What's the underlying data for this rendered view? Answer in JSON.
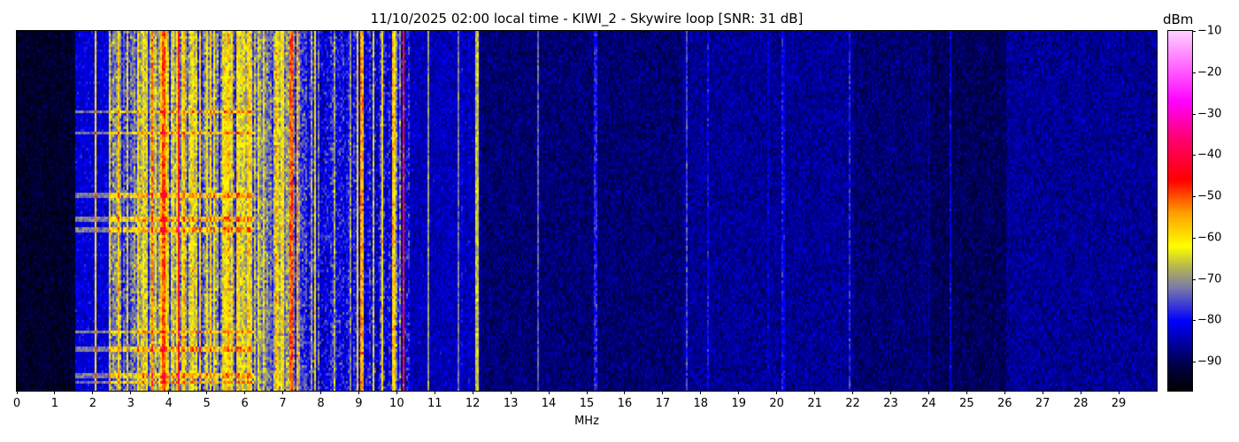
{
  "chart_data": {
    "type": "heatmap",
    "title": "11/10/2025 02:00 local time - KIWI_2 - Skywire loop [SNR: 31 dB]",
    "xlabel": "MHz",
    "ylabel": "",
    "xlim": [
      0,
      30
    ],
    "x_ticks": [
      "0",
      "1",
      "2",
      "3",
      "4",
      "5",
      "6",
      "7",
      "8",
      "9",
      "10",
      "11",
      "12",
      "13",
      "14",
      "15",
      "16",
      "17",
      "18",
      "19",
      "20",
      "21",
      "22",
      "23",
      "24",
      "25",
      "26",
      "27",
      "28",
      "29"
    ],
    "colorbar": {
      "label": "dBm",
      "range": [
        -97,
        -10
      ],
      "ticks": [
        "−10",
        "−20",
        "−30",
        "−40",
        "−50",
        "−60",
        "−70",
        "−80",
        "−90"
      ],
      "tick_values": [
        -10,
        -20,
        -30,
        -40,
        -50,
        -60,
        -70,
        -80,
        -90
      ],
      "colormap_stops": [
        {
          "dbm": -97,
          "color": "#000000"
        },
        {
          "dbm": -90,
          "color": "#000050"
        },
        {
          "dbm": -80,
          "color": "#0000ff"
        },
        {
          "dbm": -72,
          "color": "#7a7aa8"
        },
        {
          "dbm": -67,
          "color": "#b5b550"
        },
        {
          "dbm": -62,
          "color": "#ffff00"
        },
        {
          "dbm": -54,
          "color": "#ffa000"
        },
        {
          "dbm": -46,
          "color": "#ff0000"
        },
        {
          "dbm": -36,
          "color": "#ff0070"
        },
        {
          "dbm": -27,
          "color": "#ff00ff"
        },
        {
          "dbm": -10,
          "color": "#ffd0ff"
        }
      ]
    },
    "background_profile_dbm": [
      {
        "from_mhz": 0,
        "to_mhz": 1.5,
        "level": -93
      },
      {
        "from_mhz": 1.5,
        "to_mhz": 2.4,
        "level": -82
      },
      {
        "from_mhz": 2.4,
        "to_mhz": 7.6,
        "level": -68
      },
      {
        "from_mhz": 7.6,
        "to_mhz": 10.3,
        "level": -77
      },
      {
        "from_mhz": 10.3,
        "to_mhz": 12.2,
        "level": -84
      },
      {
        "from_mhz": 12.2,
        "to_mhz": 17.5,
        "level": -88
      },
      {
        "from_mhz": 17.5,
        "to_mhz": 22,
        "level": -86
      },
      {
        "from_mhz": 22,
        "to_mhz": 26,
        "level": -88
      },
      {
        "from_mhz": 26,
        "to_mhz": 30,
        "level": -86
      }
    ],
    "strong_signals": [
      {
        "mhz": 2.05,
        "dbm": -60
      },
      {
        "mhz": 2.65,
        "dbm": -60
      },
      {
        "mhz": 3.55,
        "dbm": -52
      },
      {
        "mhz": 3.85,
        "dbm": -50
      },
      {
        "mhz": 4.25,
        "dbm": -44
      },
      {
        "mhz": 5.8,
        "dbm": -60
      },
      {
        "mhz": 6.05,
        "dbm": -58
      },
      {
        "mhz": 7.2,
        "dbm": -50
      },
      {
        "mhz": 7.35,
        "dbm": -55
      },
      {
        "mhz": 9.05,
        "dbm": -55
      },
      {
        "mhz": 9.9,
        "dbm": -58
      },
      {
        "mhz": 10.15,
        "dbm": -45
      },
      {
        "mhz": 11.6,
        "dbm": -72
      },
      {
        "mhz": 12.1,
        "dbm": -66
      },
      {
        "mhz": 13.7,
        "dbm": -74
      },
      {
        "mhz": 15.2,
        "dbm": -78
      },
      {
        "mhz": 17.6,
        "dbm": -76
      },
      {
        "mhz": 21.9,
        "dbm": -78
      }
    ]
  }
}
